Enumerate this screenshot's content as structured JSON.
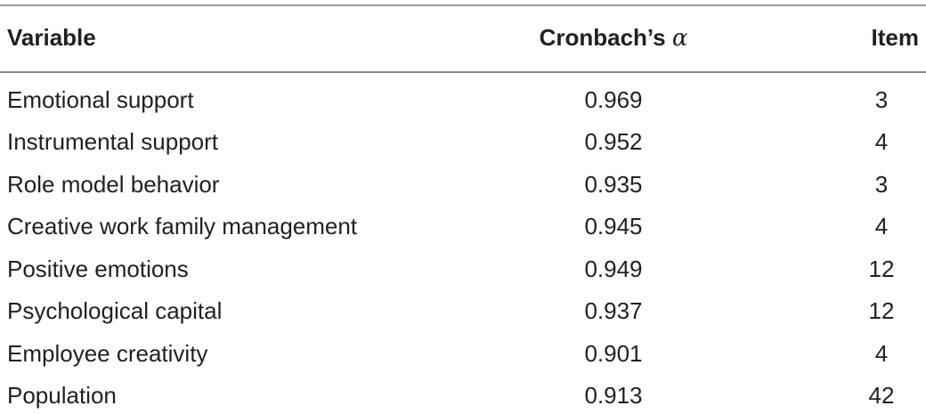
{
  "table": {
    "headers": {
      "variable": "Variable",
      "alpha_prefix": "Cronbach’s ",
      "alpha_symbol": "α",
      "item": "Item"
    },
    "rows": [
      {
        "variable": "Emotional support",
        "alpha": "0.969",
        "item": "3"
      },
      {
        "variable": "Instrumental support",
        "alpha": "0.952",
        "item": "4"
      },
      {
        "variable": "Role model behavior",
        "alpha": "0.935",
        "item": "3"
      },
      {
        "variable": "Creative work family management",
        "alpha": "0.945",
        "item": "4"
      },
      {
        "variable": "Positive emotions",
        "alpha": "0.949",
        "item": "12"
      },
      {
        "variable": "Psychological capital",
        "alpha": "0.937",
        "item": "12"
      },
      {
        "variable": "Employee creativity",
        "alpha": "0.901",
        "item": "4"
      },
      {
        "variable": "Population",
        "alpha": "0.913",
        "item": "42"
      }
    ]
  }
}
